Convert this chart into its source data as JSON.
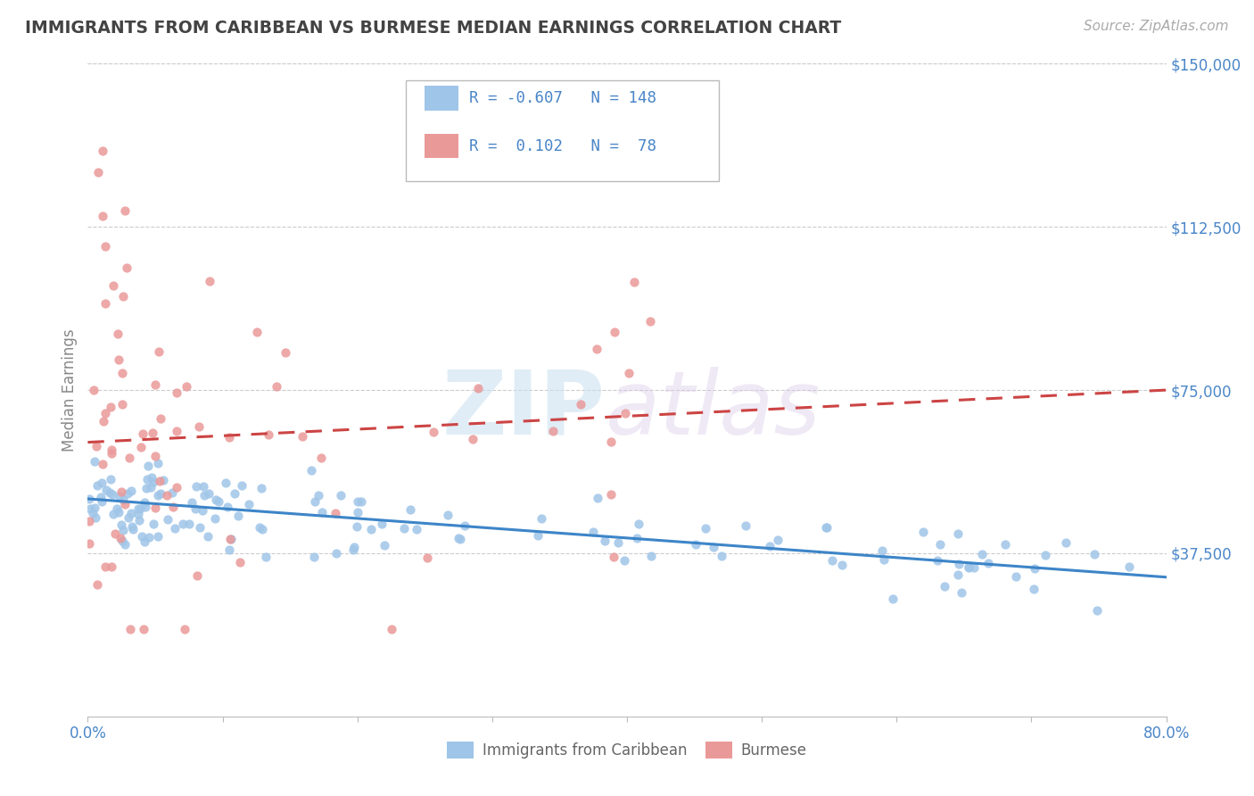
{
  "title": "IMMIGRANTS FROM CARIBBEAN VS BURMESE MEDIAN EARNINGS CORRELATION CHART",
  "source": "Source: ZipAtlas.com",
  "ylabel": "Median Earnings",
  "watermark_zip": "ZIP",
  "watermark_atlas": "atlas",
  "x_min": 0.0,
  "x_max": 0.8,
  "y_min": 0,
  "y_max": 150000,
  "y_ticks": [
    37500,
    75000,
    112500,
    150000
  ],
  "y_tick_labels": [
    "$37,500",
    "$75,000",
    "$112,500",
    "$150,000"
  ],
  "blue_color": "#9fc5e8",
  "pink_color": "#ea9999",
  "blue_line_color": "#3d85c8",
  "pink_line_color": "#cc4444",
  "blue_R": -0.607,
  "blue_N": 148,
  "pink_R": 0.102,
  "pink_N": 78,
  "legend_label_blue": "Immigrants from Caribbean",
  "legend_label_pink": "Burmese",
  "title_color": "#434343",
  "axis_label_color": "#4a86c8",
  "tick_label_color": "#666666",
  "grid_color": "#cccccc",
  "background_color": "#ffffff",
  "blue_trend_x0": 0.0,
  "blue_trend_y0": 50000,
  "blue_trend_x1": 0.8,
  "blue_trend_y1": 32000,
  "pink_trend_x0": 0.0,
  "pink_trend_y0": 63000,
  "pink_trend_x1": 0.8,
  "pink_trend_y1": 75000
}
